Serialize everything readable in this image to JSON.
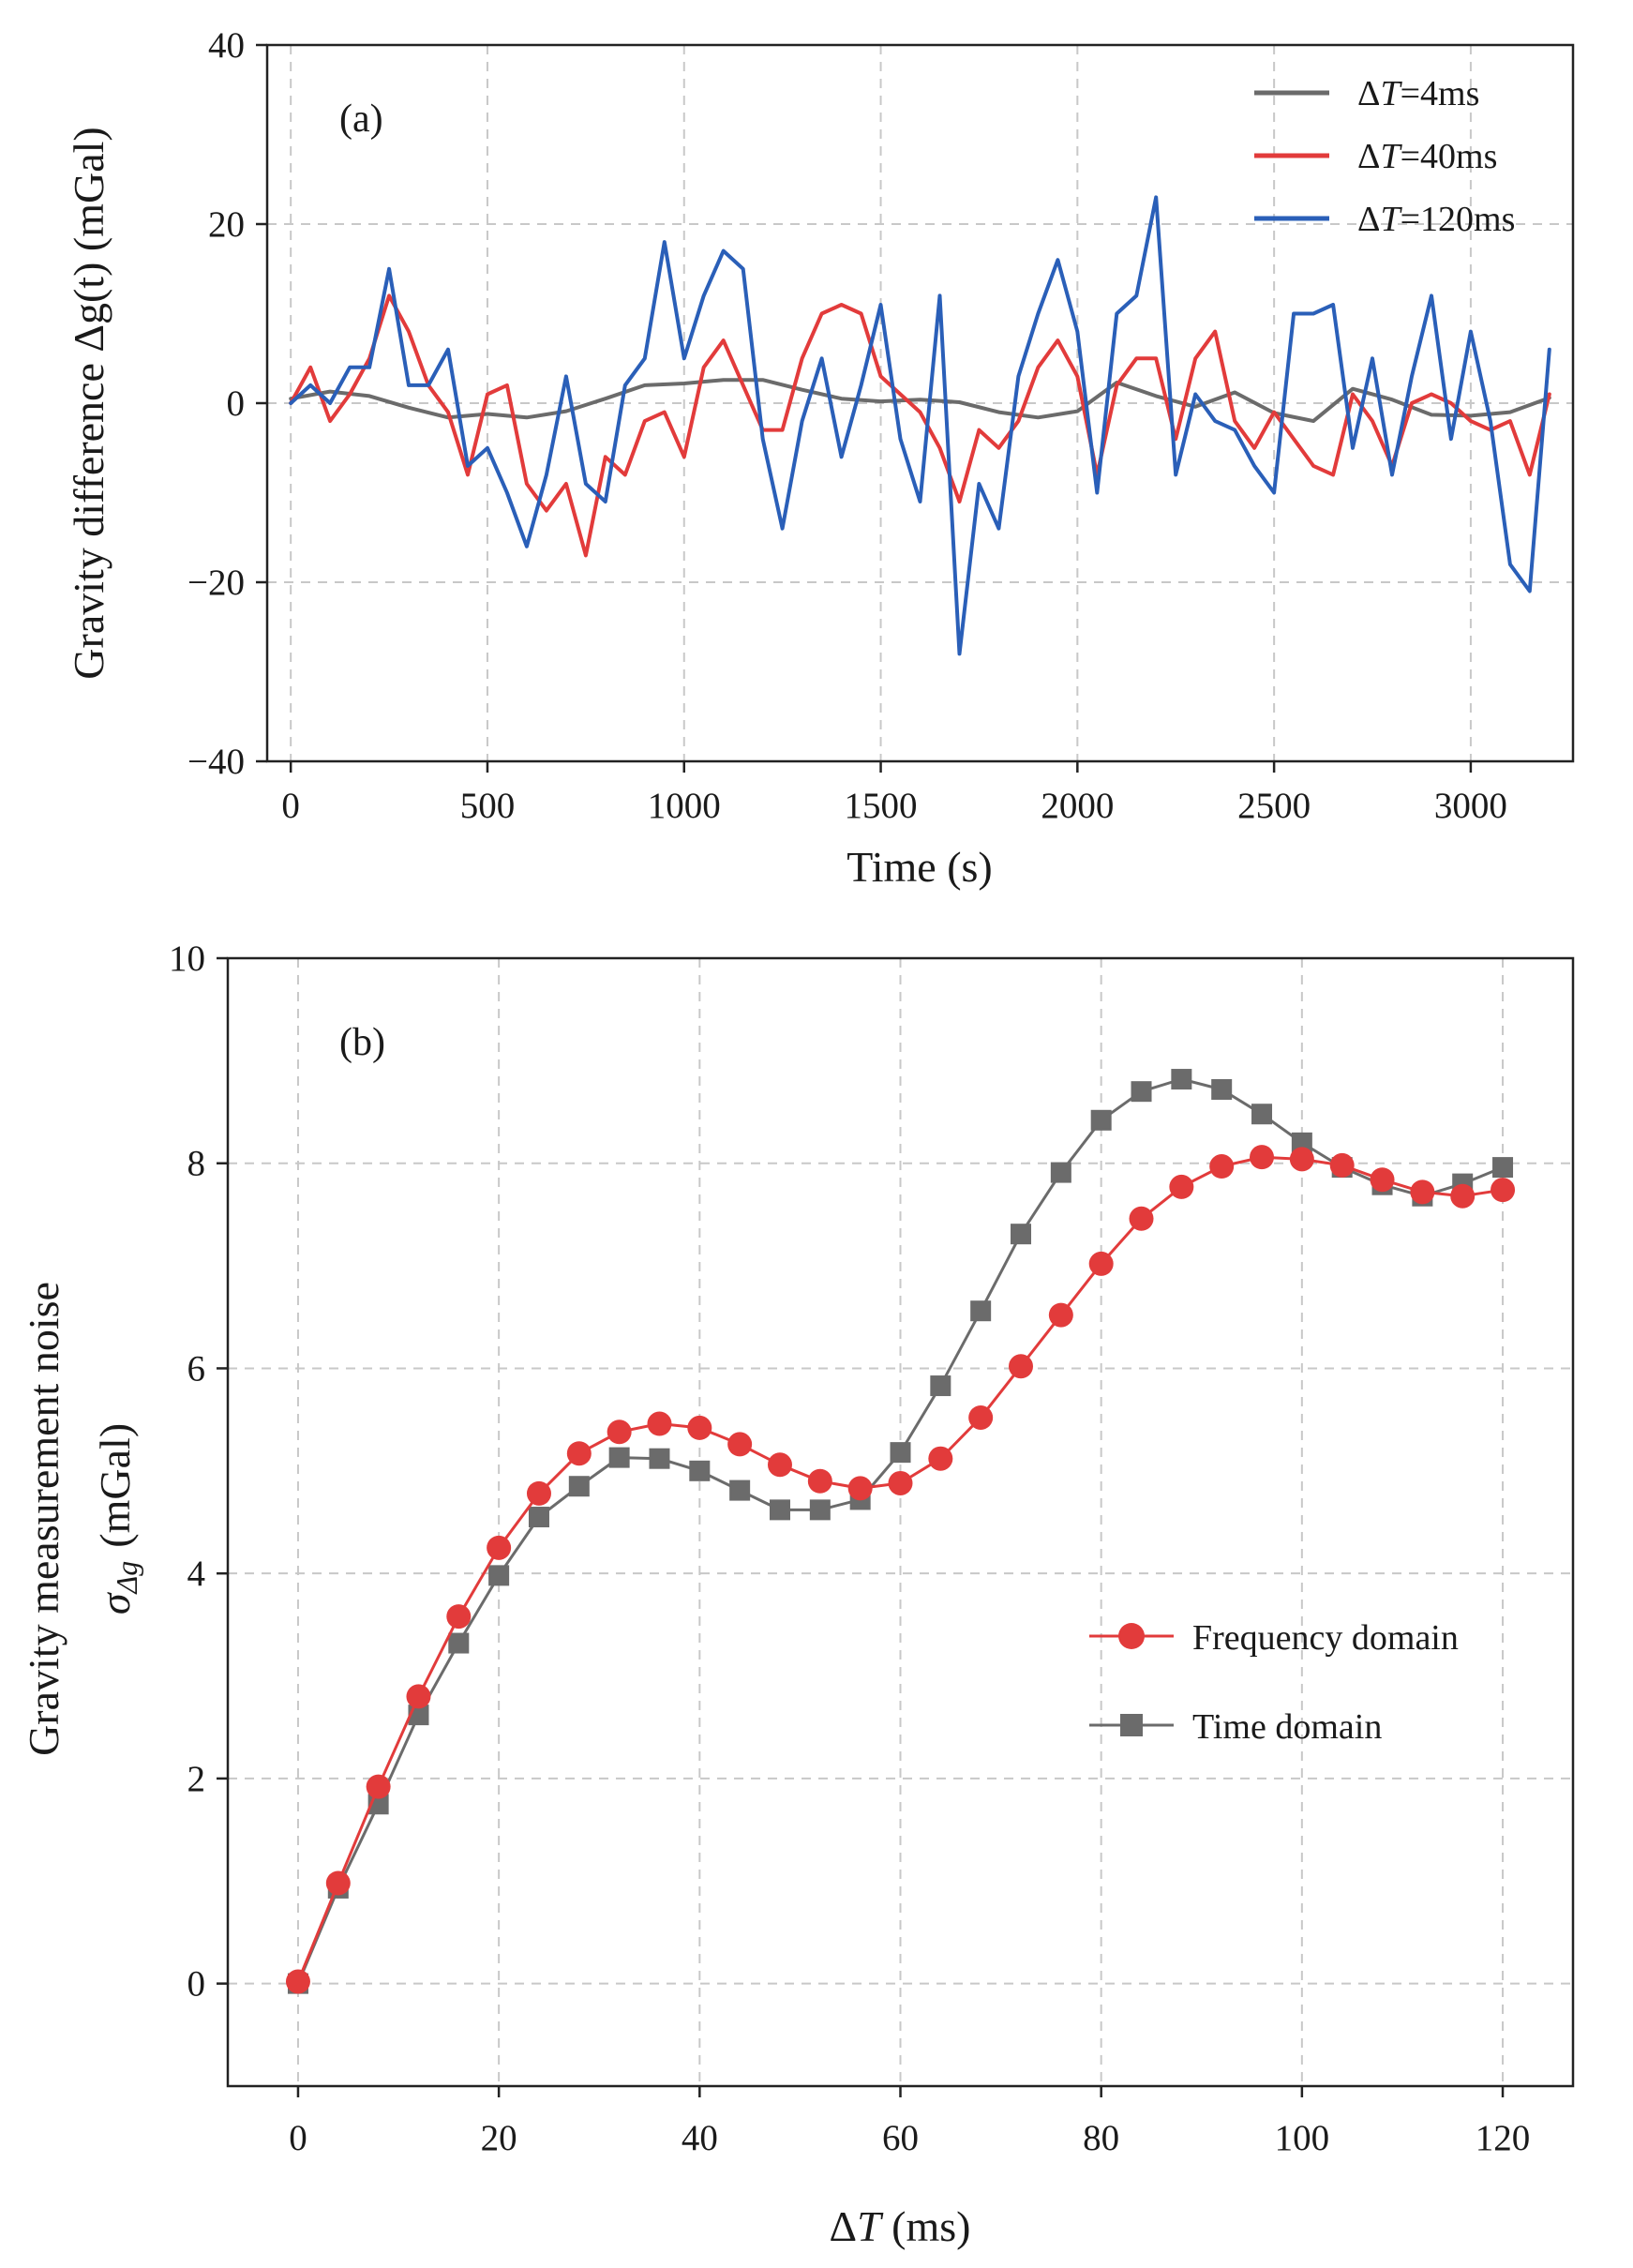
{
  "figure": {
    "panel_a_label": "(a)",
    "panel_b_label": "(b)"
  },
  "colors": {
    "gray": "#6b6b6b",
    "red": "#e23b3b",
    "blue": "#2a5fb8",
    "grid": "#c8c8c8",
    "axis": "#222222"
  },
  "chart_data": [
    {
      "type": "line",
      "panel": "(a)",
      "title": "",
      "xlabel": "Time (s)",
      "ylabel": "Gravity difference  Δg(t) (mGal)",
      "xlim": [
        -60,
        3260
      ],
      "ylim": [
        -40,
        40
      ],
      "xticks": [
        0,
        500,
        1000,
        1500,
        2000,
        2500,
        3000
      ],
      "yticks": [
        -40,
        -20,
        0,
        20,
        40
      ],
      "xtick_labels": [
        "0",
        "500",
        "1000",
        "1500",
        "2000",
        "2500",
        "3000"
      ],
      "ytick_labels": [
        "−40",
        "−20",
        "0",
        "20",
        "40"
      ],
      "grid": true,
      "legend_position": "top-right",
      "series": [
        {
          "name": "ΔT=4ms",
          "legend_prefix": "Δ",
          "legend_italic": "T",
          "legend_suffix": "=4ms",
          "color": "#6b6b6b",
          "x": [
            0,
            100,
            200,
            300,
            400,
            500,
            600,
            700,
            800,
            900,
            1000,
            1100,
            1200,
            1300,
            1400,
            1500,
            1600,
            1700,
            1800,
            1900,
            2000,
            2100,
            2200,
            2300,
            2400,
            2500,
            2600,
            2700,
            2800,
            2900,
            3000,
            3100,
            3200
          ],
          "y": [
            0.5,
            1.3,
            0.8,
            -0.5,
            -1.6,
            -1.2,
            -1.6,
            -0.9,
            0.5,
            2,
            2.2,
            2.6,
            2.6,
            1.5,
            0.5,
            0.2,
            0.4,
            0.1,
            -1,
            -1.6,
            -0.9,
            2.3,
            0.8,
            -0.4,
            1.2,
            -1.1,
            -2,
            1.6,
            0.4,
            -1.3,
            -1.4,
            -1,
            0.6
          ]
        },
        {
          "name": "ΔT=40ms",
          "legend_prefix": "Δ",
          "legend_italic": "T",
          "legend_suffix": "=40ms",
          "color": "#e23b3b",
          "x": [
            0,
            50,
            100,
            150,
            200,
            250,
            300,
            350,
            400,
            450,
            500,
            550,
            600,
            650,
            700,
            750,
            800,
            850,
            900,
            950,
            1000,
            1050,
            1100,
            1150,
            1200,
            1250,
            1300,
            1350,
            1400,
            1450,
            1500,
            1550,
            1600,
            1650,
            1700,
            1750,
            1800,
            1850,
            1900,
            1950,
            2000,
            2050,
            2100,
            2150,
            2200,
            2250,
            2300,
            2350,
            2400,
            2450,
            2500,
            2550,
            2600,
            2650,
            2700,
            2750,
            2800,
            2850,
            2900,
            2950,
            3000,
            3050,
            3100,
            3150,
            3200
          ],
          "y": [
            0,
            4,
            -2,
            1,
            5,
            12,
            8,
            2,
            -1,
            -8,
            1,
            2,
            -9,
            -12,
            -9,
            -17,
            -6,
            -8,
            -2,
            -1,
            -6,
            4,
            7,
            2,
            -3,
            -3,
            5,
            10,
            11,
            10,
            3,
            1,
            -1,
            -5,
            -11,
            -3,
            -5,
            -2,
            4,
            7,
            3,
            -8,
            2,
            5,
            5,
            -4,
            5,
            8,
            -2,
            -5,
            -1,
            -4,
            -7,
            -8,
            1,
            -2,
            -7,
            0,
            1,
            0,
            -2,
            -3,
            -2,
            -8,
            1
          ]
        },
        {
          "name": "ΔT=120ms",
          "legend_prefix": "Δ",
          "legend_italic": "T",
          "legend_suffix": "=120ms",
          "color": "#2a5fb8",
          "x": [
            0,
            50,
            100,
            150,
            200,
            250,
            300,
            350,
            400,
            450,
            500,
            550,
            600,
            650,
            700,
            750,
            800,
            850,
            900,
            950,
            1000,
            1050,
            1100,
            1150,
            1200,
            1250,
            1300,
            1350,
            1400,
            1450,
            1500,
            1550,
            1600,
            1650,
            1700,
            1750,
            1800,
            1850,
            1900,
            1950,
            2000,
            2050,
            2100,
            2150,
            2200,
            2250,
            2300,
            2350,
            2400,
            2450,
            2500,
            2550,
            2600,
            2650,
            2700,
            2750,
            2800,
            2850,
            2900,
            2950,
            3000,
            3050,
            3100,
            3150,
            3200
          ],
          "y": [
            0,
            2,
            0,
            4,
            4,
            15,
            2,
            2,
            6,
            -7,
            -5,
            -10,
            -16,
            -8,
            3,
            -9,
            -11,
            2,
            5,
            18,
            5,
            12,
            17,
            15,
            -4,
            -14,
            -2,
            5,
            -6,
            2,
            11,
            -4,
            -11,
            12,
            -28,
            -9,
            -14,
            3,
            10,
            16,
            8,
            -10,
            10,
            12,
            23,
            -8,
            1,
            -2,
            -3,
            -7,
            -10,
            10,
            10,
            11,
            -5,
            5,
            -8,
            3,
            12,
            -4,
            8,
            -2,
            -18,
            -21,
            6
          ]
        }
      ]
    },
    {
      "type": "line",
      "panel": "(b)",
      "title": "",
      "xlabel": "ΔT (ms)",
      "ylabel_line1": "Gravity measurement noise",
      "ylabel_sigma": "σ",
      "ylabel_sub": "Δg",
      "ylabel_unit": "(mGal)",
      "xlim": [
        -7,
        127
      ],
      "ylim": [
        -1,
        10
      ],
      "xticks": [
        0,
        20,
        40,
        60,
        80,
        100,
        120
      ],
      "yticks": [
        0,
        2,
        4,
        6,
        8,
        10
      ],
      "xtick_labels": [
        "0",
        "20",
        "40",
        "60",
        "80",
        "100",
        "120"
      ],
      "ytick_labels": [
        "0",
        "2",
        "4",
        "6",
        "8",
        "10"
      ],
      "grid": true,
      "legend_position": "center-right",
      "series": [
        {
          "name": "Frequency domain",
          "color": "#e23b3b",
          "marker": "circle",
          "x": [
            0,
            4,
            8,
            12,
            16,
            20,
            24,
            28,
            32,
            36,
            40,
            44,
            48,
            52,
            56,
            60,
            64,
            68,
            72,
            76,
            80,
            84,
            88,
            92,
            96,
            100,
            104,
            108,
            112,
            116,
            120
          ],
          "y": [
            0.02,
            0.98,
            1.92,
            2.8,
            3.58,
            4.25,
            4.78,
            5.17,
            5.38,
            5.46,
            5.42,
            5.26,
            5.06,
            4.9,
            4.83,
            4.88,
            5.12,
            5.52,
            6.02,
            6.52,
            7.02,
            7.46,
            7.77,
            7.97,
            8.06,
            8.04,
            7.98,
            7.84,
            7.72,
            7.68,
            7.74
          ]
        },
        {
          "name": "Time domain",
          "color": "#6b6b6b",
          "marker": "square",
          "x": [
            0,
            4,
            8,
            12,
            16,
            20,
            24,
            28,
            32,
            36,
            40,
            44,
            48,
            52,
            56,
            60,
            64,
            68,
            72,
            76,
            80,
            84,
            88,
            92,
            96,
            100,
            104,
            108,
            112,
            116,
            120
          ],
          "y": [
            0.0,
            0.93,
            1.75,
            2.62,
            3.32,
            3.98,
            4.55,
            4.85,
            5.13,
            5.12,
            5.0,
            4.81,
            4.62,
            4.62,
            4.72,
            5.18,
            5.83,
            6.56,
            7.31,
            7.91,
            8.42,
            8.7,
            8.82,
            8.72,
            8.48,
            8.2,
            7.96,
            7.79,
            7.68,
            7.8,
            7.96
          ]
        }
      ]
    }
  ]
}
